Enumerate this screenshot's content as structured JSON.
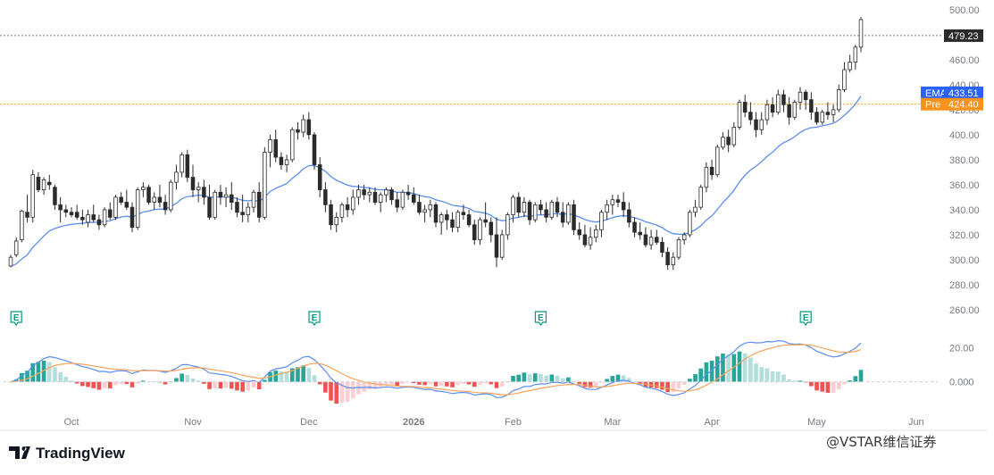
{
  "chart_data": {
    "type": "candlestick",
    "price_axis": {
      "ticks": [
        "500.00",
        "480.00",
        "460.00",
        "440.00",
        "420.00",
        "400.00",
        "380.00",
        "360.00",
        "340.00",
        "320.00",
        "300.00",
        "280.00",
        "260.00"
      ],
      "range": [
        255,
        502
      ]
    },
    "macd_axis": {
      "ticks": [
        "20.00",
        "0.000"
      ],
      "range": [
        -18,
        26
      ]
    },
    "time_axis": {
      "labels": [
        {
          "text": "Oct",
          "bar": 11
        },
        {
          "text": "Nov",
          "bar": 33
        },
        {
          "text": "Dec",
          "bar": 54
        },
        {
          "text": "2026",
          "bar": 73
        },
        {
          "text": "Feb",
          "bar": 91
        },
        {
          "text": "Mar",
          "bar": 109
        },
        {
          "text": "Apr",
          "bar": 127
        },
        {
          "text": "May",
          "bar": 146
        },
        {
          "text": "Jun",
          "bar": 164
        }
      ]
    },
    "candles": [
      [
        295,
        304,
        294,
        302
      ],
      [
        304,
        318,
        302,
        315
      ],
      [
        316,
        340,
        314,
        339
      ],
      [
        338,
        352,
        330,
        334
      ],
      [
        334,
        372,
        330,
        368
      ],
      [
        366,
        370,
        354,
        356
      ],
      [
        356,
        366,
        352,
        364
      ],
      [
        362,
        368,
        356,
        360
      ],
      [
        358,
        360,
        340,
        344
      ],
      [
        344,
        350,
        330,
        340
      ],
      [
        340,
        344,
        334,
        338
      ],
      [
        338,
        342,
        334,
        336
      ],
      [
        338,
        344,
        332,
        334
      ],
      [
        334,
        340,
        328,
        332
      ],
      [
        330,
        340,
        326,
        336
      ],
      [
        336,
        344,
        330,
        332
      ],
      [
        332,
        336,
        324,
        328
      ],
      [
        328,
        342,
        326,
        340
      ],
      [
        340,
        346,
        332,
        334
      ],
      [
        334,
        352,
        332,
        350
      ],
      [
        350,
        354,
        344,
        346
      ],
      [
        346,
        356,
        340,
        342
      ],
      [
        342,
        346,
        322,
        326
      ],
      [
        326,
        358,
        324,
        356
      ],
      [
        356,
        362,
        350,
        358
      ],
      [
        358,
        360,
        344,
        346
      ],
      [
        346,
        354,
        340,
        350
      ],
      [
        350,
        360,
        342,
        346
      ],
      [
        346,
        352,
        336,
        340
      ],
      [
        340,
        364,
        338,
        362
      ],
      [
        362,
        376,
        356,
        370
      ],
      [
        370,
        386,
        366,
        384
      ],
      [
        384,
        388,
        362,
        366
      ],
      [
        366,
        376,
        350,
        356
      ],
      [
        356,
        362,
        346,
        358
      ],
      [
        358,
        364,
        344,
        350
      ],
      [
        350,
        360,
        332,
        334
      ],
      [
        334,
        356,
        332,
        354
      ],
      [
        354,
        360,
        344,
        350
      ],
      [
        350,
        358,
        342,
        352
      ],
      [
        352,
        362,
        340,
        346
      ],
      [
        346,
        350,
        334,
        338
      ],
      [
        338,
        352,
        330,
        336
      ],
      [
        336,
        346,
        330,
        342
      ],
      [
        342,
        356,
        338,
        354
      ],
      [
        354,
        362,
        330,
        334
      ],
      [
        334,
        390,
        332,
        386
      ],
      [
        386,
        400,
        374,
        396
      ],
      [
        396,
        404,
        378,
        382
      ],
      [
        382,
        386,
        372,
        376
      ],
      [
        376,
        384,
        370,
        380
      ],
      [
        380,
        406,
        378,
        404
      ],
      [
        404,
        410,
        396,
        402
      ],
      [
        402,
        416,
        398,
        412
      ],
      [
        412,
        418,
        396,
        400
      ],
      [
        400,
        402,
        372,
        376
      ],
      [
        376,
        382,
        350,
        356
      ],
      [
        356,
        362,
        338,
        344
      ],
      [
        344,
        348,
        324,
        328
      ],
      [
        328,
        338,
        322,
        334
      ],
      [
        334,
        346,
        330,
        344
      ],
      [
        344,
        350,
        334,
        340
      ],
      [
        340,
        356,
        336,
        350
      ],
      [
        350,
        360,
        344,
        356
      ],
      [
        356,
        360,
        348,
        352
      ],
      [
        352,
        358,
        346,
        354
      ],
      [
        354,
        358,
        344,
        346
      ],
      [
        346,
        354,
        338,
        352
      ],
      [
        352,
        358,
        346,
        356
      ],
      [
        356,
        358,
        344,
        348
      ],
      [
        348,
        354,
        338,
        342
      ],
      [
        342,
        356,
        340,
        354
      ],
      [
        354,
        360,
        348,
        352
      ],
      [
        352,
        358,
        344,
        346
      ],
      [
        346,
        352,
        336,
        338
      ],
      [
        338,
        344,
        330,
        340
      ],
      [
        340,
        348,
        334,
        344
      ],
      [
        344,
        346,
        326,
        330
      ],
      [
        330,
        338,
        320,
        336
      ],
      [
        336,
        340,
        324,
        332
      ],
      [
        332,
        338,
        322,
        326
      ],
      [
        326,
        340,
        322,
        338
      ],
      [
        338,
        344,
        332,
        336
      ],
      [
        336,
        340,
        326,
        328
      ],
      [
        328,
        332,
        312,
        316
      ],
      [
        316,
        334,
        312,
        332
      ],
      [
        332,
        346,
        326,
        330
      ],
      [
        330,
        334,
        314,
        320
      ],
      [
        320,
        334,
        294,
        302
      ],
      [
        302,
        324,
        300,
        320
      ],
      [
        320,
        338,
        316,
        336
      ],
      [
        336,
        352,
        330,
        350
      ],
      [
        350,
        354,
        334,
        338
      ],
      [
        338,
        350,
        334,
        346
      ],
      [
        346,
        348,
        328,
        332
      ],
      [
        332,
        346,
        330,
        344
      ],
      [
        344,
        348,
        336,
        340
      ],
      [
        340,
        346,
        330,
        334
      ],
      [
        334,
        348,
        332,
        346
      ],
      [
        346,
        350,
        334,
        338
      ],
      [
        338,
        346,
        326,
        330
      ],
      [
        330,
        346,
        328,
        344
      ],
      [
        344,
        348,
        320,
        324
      ],
      [
        324,
        330,
        316,
        320
      ],
      [
        320,
        328,
        310,
        312
      ],
      [
        312,
        326,
        308,
        318
      ],
      [
        318,
        328,
        314,
        324
      ],
      [
        324,
        340,
        318,
        338
      ],
      [
        338,
        348,
        332,
        344
      ],
      [
        344,
        352,
        336,
        348
      ],
      [
        348,
        352,
        342,
        346
      ],
      [
        346,
        354,
        334,
        340
      ],
      [
        340,
        346,
        326,
        330
      ],
      [
        330,
        334,
        318,
        322
      ],
      [
        322,
        330,
        316,
        320
      ],
      [
        320,
        326,
        310,
        312
      ],
      [
        312,
        324,
        308,
        318
      ],
      [
        318,
        324,
        312,
        314
      ],
      [
        314,
        318,
        302,
        306
      ],
      [
        306,
        310,
        292,
        296
      ],
      [
        296,
        306,
        292,
        302
      ],
      [
        302,
        318,
        300,
        316
      ],
      [
        316,
        322,
        312,
        320
      ],
      [
        320,
        340,
        318,
        338
      ],
      [
        338,
        348,
        334,
        342
      ],
      [
        342,
        360,
        340,
        358
      ],
      [
        358,
        378,
        354,
        374
      ],
      [
        374,
        380,
        364,
        368
      ],
      [
        368,
        392,
        366,
        390
      ],
      [
        390,
        402,
        388,
        398
      ],
      [
        398,
        404,
        386,
        392
      ],
      [
        392,
        410,
        390,
        406
      ],
      [
        406,
        428,
        404,
        426
      ],
      [
        426,
        432,
        414,
        418
      ],
      [
        418,
        426,
        408,
        412
      ],
      [
        412,
        418,
        398,
        404
      ],
      [
        404,
        418,
        400,
        412
      ],
      [
        412,
        428,
        408,
        424
      ],
      [
        424,
        430,
        414,
        418
      ],
      [
        418,
        436,
        416,
        432
      ],
      [
        432,
        436,
        418,
        424
      ],
      [
        424,
        430,
        408,
        414
      ],
      [
        414,
        428,
        412,
        426
      ],
      [
        426,
        438,
        420,
        434
      ],
      [
        434,
        436,
        420,
        428
      ],
      [
        428,
        434,
        412,
        418
      ],
      [
        418,
        422,
        408,
        410
      ],
      [
        410,
        420,
        408,
        418
      ],
      [
        418,
        426,
        412,
        416
      ],
      [
        416,
        424,
        410,
        420
      ],
      [
        420,
        440,
        418,
        436
      ],
      [
        436,
        458,
        434,
        452
      ],
      [
        452,
        464,
        450,
        458
      ],
      [
        458,
        472,
        452,
        470
      ],
      [
        470,
        494,
        466,
        492
      ]
    ],
    "ema": {
      "label": "EMA",
      "value": "433.51",
      "period": 20,
      "color": "#5b8def"
    },
    "current_price": "479.23",
    "pre_market": {
      "label": "Pre",
      "value": "424.40",
      "color": "#f7931a"
    },
    "macd": {
      "macd_line_color": "#5b8def",
      "signal_line_color": "#f7a35c",
      "hist_pos_strong": "#26a69a",
      "hist_pos_weak": "#b2dfdb",
      "hist_neg_strong": "#ef5350",
      "hist_neg_weak": "#ffcdd2"
    },
    "earnings_markers": [
      {
        "label": "E",
        "bar": 1
      },
      {
        "label": "E",
        "bar": 55
      },
      {
        "label": "E",
        "bar": 96
      },
      {
        "label": "E",
        "bar": 144
      }
    ]
  },
  "branding": {
    "logo_text": "TradingView",
    "watermark": "@VSTAR维信证券"
  },
  "colors": {
    "up": "#ffffff",
    "down": "#2b2b2b",
    "wick": "#2b2b2b",
    "grid": "#f0f3fa",
    "text": "#787b86"
  }
}
